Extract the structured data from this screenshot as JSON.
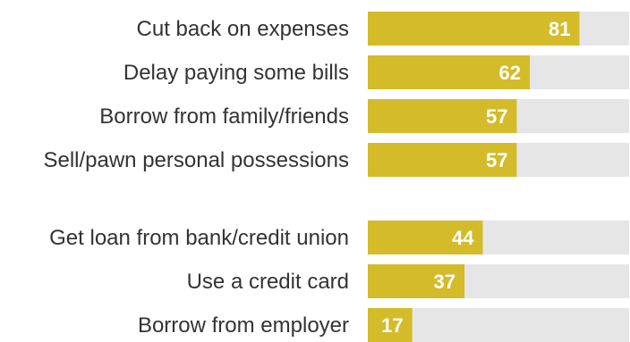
{
  "chart_data": {
    "type": "bar",
    "orientation": "horizontal",
    "categories": [
      "Cut back on expenses",
      "Delay paying some bills",
      "Borrow from family/friends",
      "Sell/pawn personal possessions",
      "Get loan from bank/credit union",
      "Use a credit card",
      "Borrow from employer"
    ],
    "values": [
      81,
      62,
      57,
      57,
      44,
      37,
      17
    ],
    "groups": [
      [
        0,
        1,
        2,
        3
      ],
      [
        4,
        5,
        6
      ]
    ],
    "xlim": [
      0,
      100
    ],
    "title": "",
    "xlabel": "",
    "ylabel": "",
    "grid": false,
    "legend": "none",
    "colors": {
      "bar": "#d4bb2a",
      "track": "#e6e6e6",
      "category_text": "#333333",
      "value_text": "#ffffff"
    }
  }
}
